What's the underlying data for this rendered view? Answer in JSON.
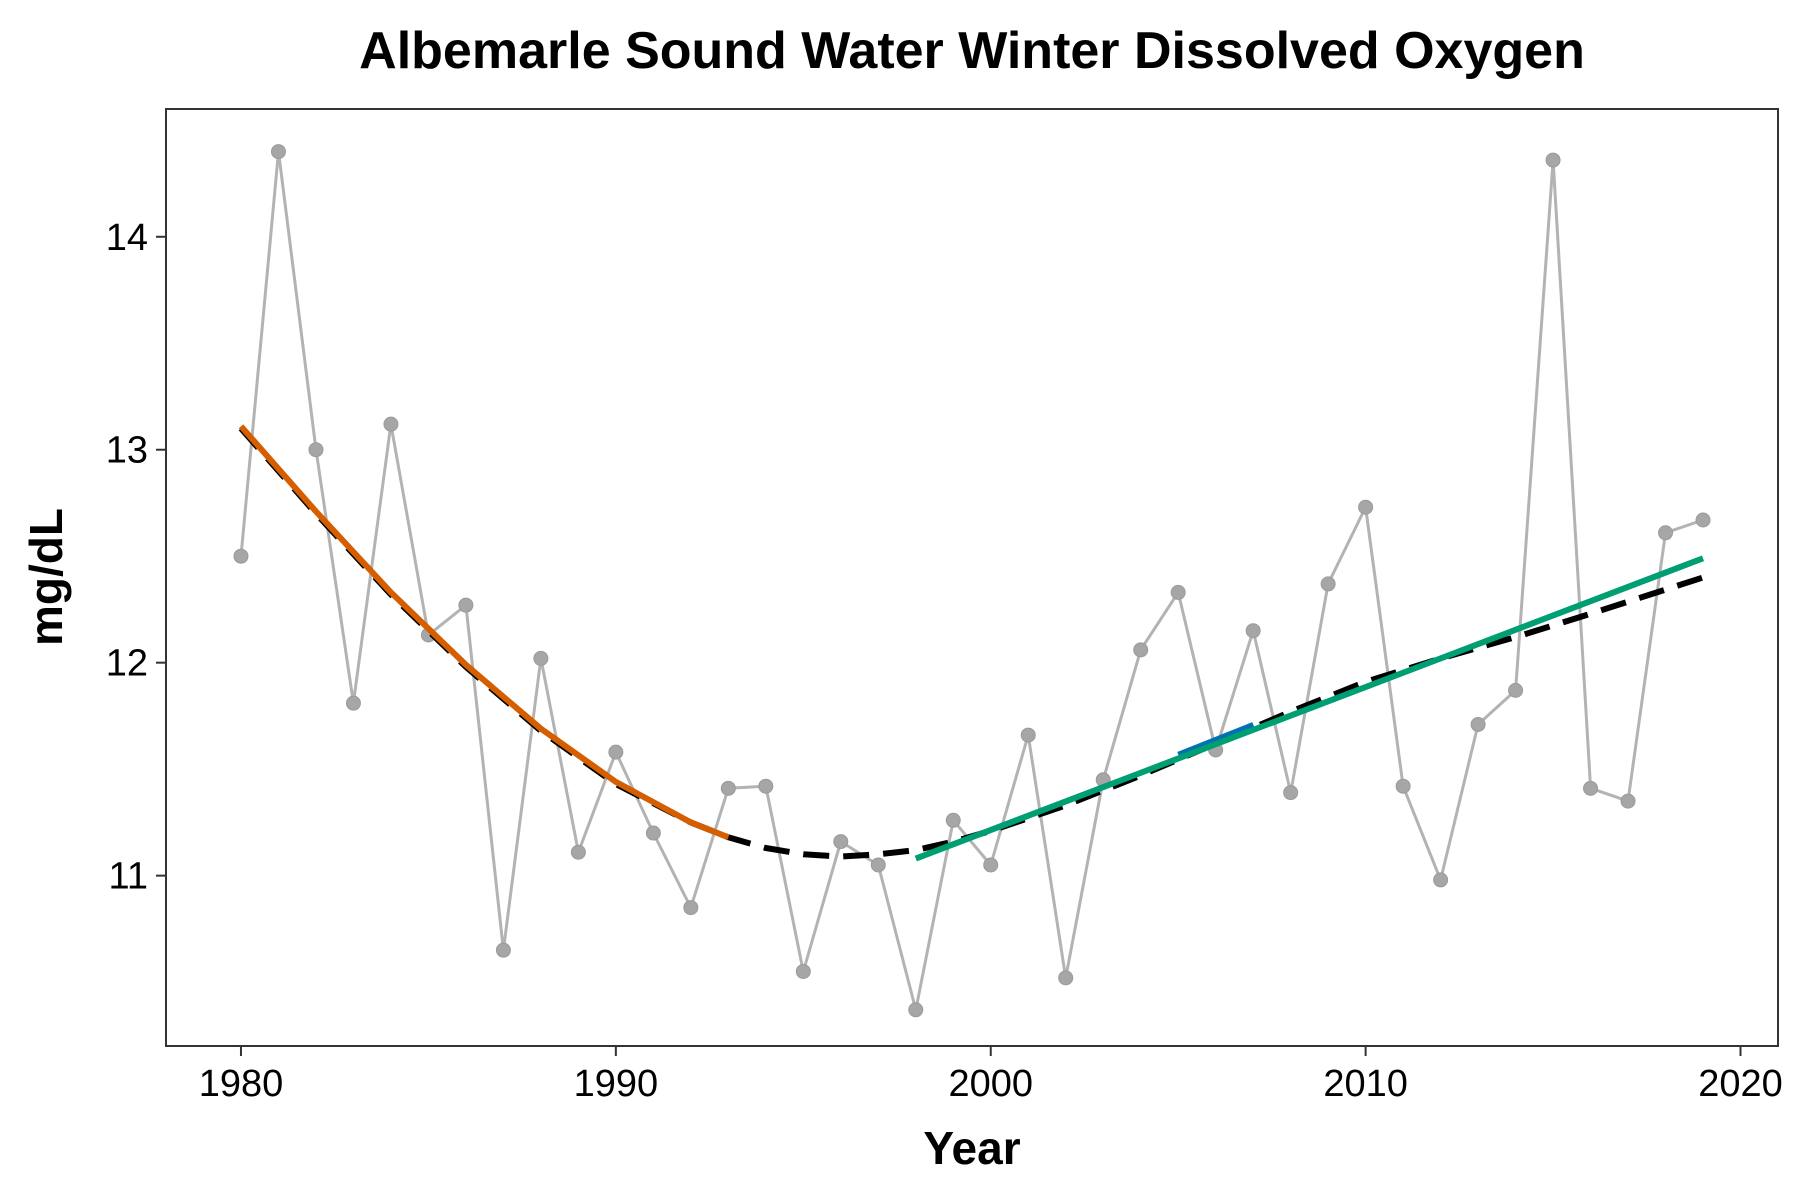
{
  "chart_data": {
    "type": "line",
    "title": "Albemarle Sound Water Winter Dissolved Oxygen",
    "xlabel": "Year",
    "ylabel": "mg/dL",
    "xlim": [
      1978,
      2021
    ],
    "ylim": [
      10.2,
      14.6
    ],
    "xticks": [
      1980,
      1990,
      2000,
      2010,
      2020
    ],
    "yticks": [
      11,
      12,
      13,
      14
    ],
    "grid": false,
    "legend": "none",
    "colors": {
      "observed": "#b3b3b3",
      "observed_points": "#a6a6a6",
      "loess": "#000000",
      "decline": "#d55e00",
      "increase_short": "#0072b2",
      "increase": "#009e73"
    },
    "series": [
      {
        "key": "observed",
        "style": "line+points",
        "x": [
          1980,
          1981,
          1982,
          1983,
          1984,
          1985,
          1986,
          1987,
          1988,
          1989,
          1990,
          1991,
          1992,
          1993,
          1994,
          1995,
          1996,
          1997,
          1998,
          1999,
          2000,
          2001,
          2002,
          2003,
          2004,
          2005,
          2006,
          2007,
          2008,
          2009,
          2010,
          2011,
          2012,
          2013,
          2014,
          2015,
          2016,
          2017,
          2018,
          2019
        ],
        "y": [
          12.5,
          14.4,
          13.0,
          11.81,
          13.12,
          12.13,
          12.27,
          10.65,
          12.02,
          11.11,
          11.58,
          11.2,
          10.85,
          11.41,
          11.42,
          10.55,
          11.16,
          11.05,
          10.37,
          11.26,
          11.05,
          11.66,
          10.52,
          11.45,
          12.06,
          12.33,
          11.59,
          12.15,
          11.39,
          12.37,
          12.73,
          11.42,
          10.98,
          11.71,
          11.87,
          14.36,
          11.41,
          11.35,
          12.61,
          12.67
        ]
      },
      {
        "key": "loess",
        "style": "dashed",
        "x": [
          1980,
          1982,
          1984,
          1986,
          1988,
          1990,
          1992,
          1993,
          1994,
          1995,
          1996,
          1997,
          1998,
          1999,
          2000,
          2002,
          2004,
          2006,
          2008,
          2010,
          2012,
          2014,
          2016,
          2019
        ],
        "y": [
          13.1,
          12.7,
          12.32,
          11.98,
          11.68,
          11.43,
          11.25,
          11.18,
          11.13,
          11.1,
          11.09,
          11.1,
          11.12,
          11.16,
          11.21,
          11.33,
          11.47,
          11.62,
          11.77,
          11.91,
          12.02,
          12.12,
          12.23,
          12.4
        ]
      },
      {
        "key": "decline",
        "style": "solid",
        "x": [
          1980,
          1982,
          1984,
          1986,
          1988,
          1990,
          1992,
          1993
        ],
        "y": [
          13.11,
          12.71,
          12.33,
          11.99,
          11.69,
          11.44,
          11.25,
          11.18
        ]
      },
      {
        "key": "increase_short",
        "style": "solid",
        "x": [
          2005,
          2007
        ],
        "y": [
          11.57,
          11.71
        ]
      },
      {
        "key": "increase",
        "style": "solid",
        "x": [
          1998,
          2019
        ],
        "y": [
          11.08,
          12.49
        ]
      }
    ]
  }
}
